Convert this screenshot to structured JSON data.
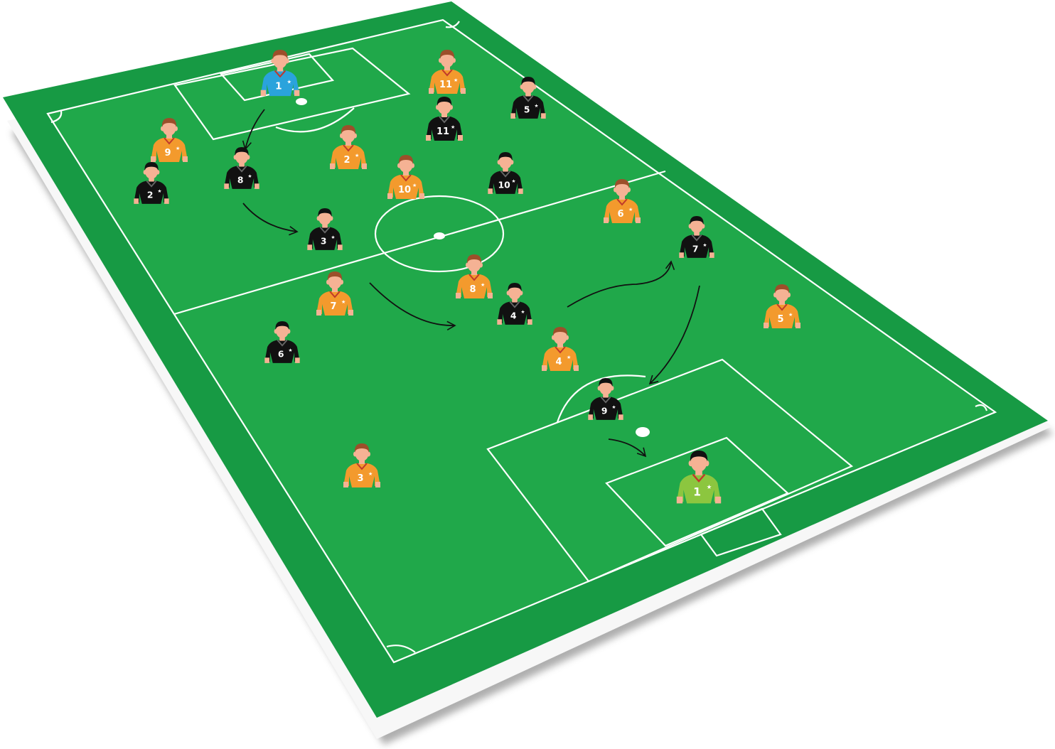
{
  "colors": {
    "pitch_inner": "#20a84a",
    "pitch_outer": "#179a44",
    "lines": "#ffffff",
    "team_orange_shirt": "#f39a2d",
    "team_black_shirt": "#111111",
    "home_keeper_shirt": "#2aa3dc",
    "away_keeper_shirt": "#8cc63f",
    "skin": "#f5b294",
    "hair_brown": "#9c4f2a",
    "hair_black": "#111111"
  },
  "players": [
    {
      "team": "home-keeper",
      "number": "1",
      "name": "keeper-blue-1"
    },
    {
      "team": "orange",
      "number": "11",
      "name": "orange-11"
    },
    {
      "team": "black",
      "number": "5",
      "name": "black-5"
    },
    {
      "team": "black",
      "number": "11",
      "name": "black-11"
    },
    {
      "team": "orange",
      "number": "9",
      "name": "orange-9"
    },
    {
      "team": "orange",
      "number": "2",
      "name": "orange-2"
    },
    {
      "team": "black",
      "number": "8",
      "name": "black-8"
    },
    {
      "team": "black",
      "number": "2",
      "name": "black-2"
    },
    {
      "team": "orange",
      "number": "10",
      "name": "orange-10"
    },
    {
      "team": "black",
      "number": "10",
      "name": "black-10"
    },
    {
      "team": "orange",
      "number": "6",
      "name": "orange-6"
    },
    {
      "team": "black",
      "number": "3",
      "name": "black-3"
    },
    {
      "team": "black",
      "number": "7",
      "name": "black-7"
    },
    {
      "team": "orange",
      "number": "8",
      "name": "orange-8"
    },
    {
      "team": "orange",
      "number": "7",
      "name": "orange-7"
    },
    {
      "team": "black",
      "number": "4",
      "name": "black-4"
    },
    {
      "team": "orange",
      "number": "5",
      "name": "orange-5"
    },
    {
      "team": "black",
      "number": "6",
      "name": "black-6"
    },
    {
      "team": "orange",
      "number": "4",
      "name": "orange-4"
    },
    {
      "team": "black",
      "number": "9",
      "name": "black-9"
    },
    {
      "team": "orange",
      "number": "3",
      "name": "orange-3"
    },
    {
      "team": "away-keeper",
      "number": "1",
      "name": "keeper-green-1"
    }
  ],
  "passes": [
    {
      "from": "keeper-blue-1",
      "to": "black-8"
    },
    {
      "from": "black-8",
      "to": "black-3"
    },
    {
      "from": "orange-7",
      "to": "pass-target-midfield"
    },
    {
      "from": "black-4",
      "to": "black-7"
    },
    {
      "from": "black-7",
      "to": "penalty-arc"
    },
    {
      "from": "black-9",
      "to": "goal-box"
    }
  ]
}
